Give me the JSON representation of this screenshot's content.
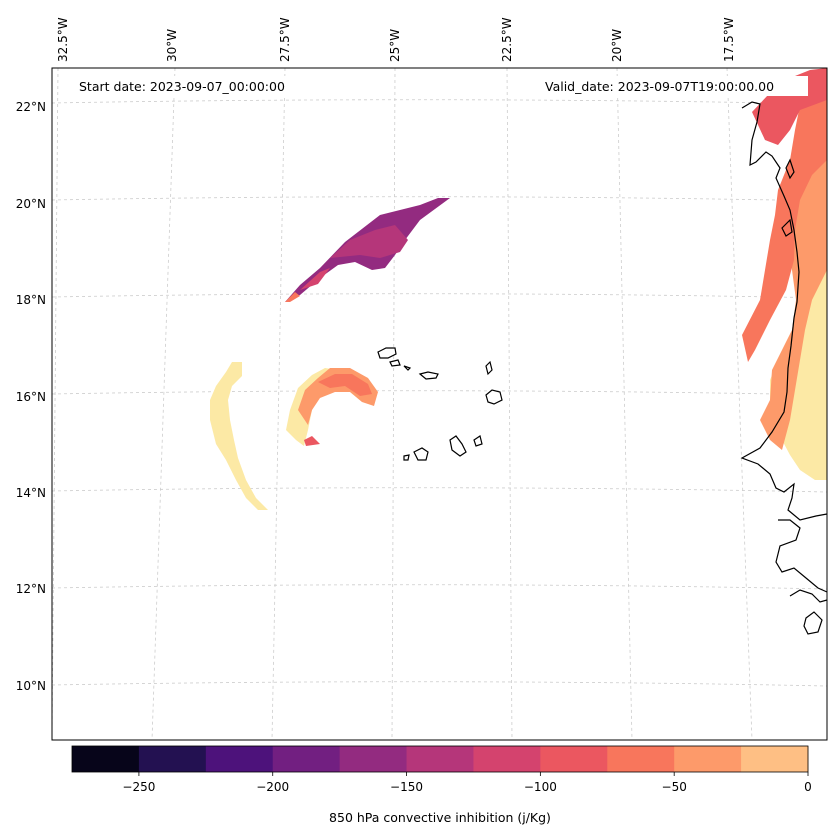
{
  "map": {
    "start_label": "Start date: 2023-09-07_00:00:00",
    "valid_label": "Valid_date: 2023-09-07T19:00:00.00",
    "lon_ticks": [
      "32.5°W",
      "30°W",
      "27.5°W",
      "25°W",
      "22.5°W",
      "20°W",
      "17.5°W"
    ],
    "lat_ticks": [
      "22°N",
      "20°N",
      "18°N",
      "16°N",
      "14°N",
      "12°N",
      "10°N"
    ]
  },
  "colorbar": {
    "label": "850 hPa convective inhibition (j/Kg)",
    "tick_labels": [
      "−250",
      "−200",
      "−150",
      "−100",
      "−50",
      "0"
    ],
    "colors": [
      "#07051a",
      "#231151",
      "#4d127b",
      "#721f81",
      "#932b80",
      "#b5367a",
      "#d4436e",
      "#eb5760",
      "#f8765c",
      "#fd9a6a",
      "#febf84",
      "#fce9a5"
    ]
  },
  "chart_data": {
    "type": "heatmap",
    "variable": "850 hPa convective inhibition",
    "units": "j/Kg",
    "levels": [
      -275,
      -250,
      -225,
      -200,
      -175,
      -150,
      -125,
      -100,
      -75,
      -50,
      -25,
      0
    ],
    "colorbar_ticks": [
      -250,
      -200,
      -150,
      -100,
      -50,
      0
    ],
    "lon_range": [
      -32.5,
      -15.5
    ],
    "lat_range": [
      9,
      22.8
    ]
  }
}
